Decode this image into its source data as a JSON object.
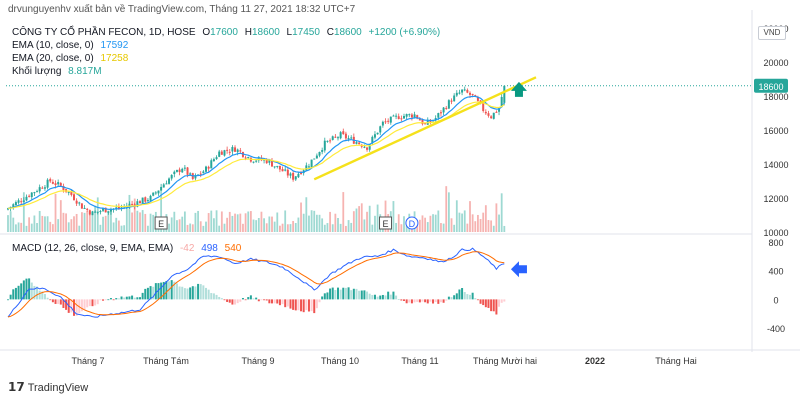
{
  "caption": "drvunguyenhv xuất bản về TradingView.com, Tháng 11 27, 2021 18:32 UTC+7",
  "main_legend": {
    "symbol_line": "CÔNG TY CỔ PHẦN FECON, 1D, HOSE",
    "o_label": "O",
    "o_value": "17600",
    "h_label": "H",
    "h_value": "18600",
    "l_label": "L",
    "l_value": "17450",
    "c_label": "C",
    "c_value": "18600",
    "change": "+1200 (+6.90%)",
    "ema10_label": "EMA (10, close, 0)",
    "ema10_value": "17592",
    "ema20_label": "EMA (20, close, 0)",
    "ema20_value": "17258",
    "volume_label": "Khối lượng",
    "volume_value": "8.817M"
  },
  "macd_legend": {
    "label": "MACD (12, 26, close, 9, EMA, EMA)",
    "hist_value": "-42",
    "macd_value": "498",
    "signal_value": "540"
  },
  "currency_badge": "VND",
  "branding": "TradingView",
  "colors": {
    "up": "#26a69a",
    "down": "#ef5350",
    "ema10": "#2196f3",
    "ema20": "#ffeb3b",
    "macd": "#2962ff",
    "signal": "#ff6d00",
    "trendline": "#f5e11b",
    "arrow_up": "#089981",
    "arrow_left": "#2962ff",
    "price_tag": "#26a69a"
  },
  "chart_data": [
    {
      "type": "candlestick",
      "title": "CÔNG TY CỔ PHẦN FECON, 1D, HOSE",
      "last_price": "18600",
      "y_ticks": [
        10000,
        12000,
        14000,
        16000,
        18000,
        20000,
        22000
      ],
      "y_tick_labels": [
        "10000",
        "12000",
        "14000",
        "16000",
        "18000",
        "20000",
        "22000"
      ],
      "ylim": [
        10000,
        22000
      ],
      "x_tick_labels": [
        "Tháng 7",
        "Tháng Tám",
        "Tháng 9",
        "Tháng 10",
        "Tháng 11",
        "Tháng Mười hai",
        "2022",
        "Tháng Hai"
      ],
      "grid": false,
      "events": [
        "E",
        "E",
        "D"
      ],
      "close_anchors": [
        [
          0,
          11400
        ],
        [
          6,
          12000
        ],
        [
          12,
          12600
        ],
        [
          16,
          13000
        ],
        [
          20,
          12700
        ],
        [
          24,
          12200
        ],
        [
          28,
          11500
        ],
        [
          32,
          11100
        ],
        [
          36,
          11300
        ],
        [
          42,
          11400
        ],
        [
          48,
          11700
        ],
        [
          54,
          12000
        ],
        [
          60,
          13000
        ],
        [
          66,
          13800
        ],
        [
          70,
          13100
        ],
        [
          75,
          13700
        ],
        [
          80,
          14700
        ],
        [
          86,
          14900
        ],
        [
          92,
          14300
        ],
        [
          98,
          14200
        ],
        [
          104,
          13600
        ],
        [
          108,
          13200
        ],
        [
          114,
          14000
        ],
        [
          120,
          15200
        ],
        [
          126,
          15700
        ],
        [
          132,
          15300
        ],
        [
          136,
          15000
        ],
        [
          142,
          16400
        ],
        [
          148,
          16800
        ],
        [
          154,
          16900
        ],
        [
          158,
          16300
        ],
        [
          162,
          16700
        ],
        [
          168,
          17800
        ],
        [
          172,
          18300
        ],
        [
          176,
          18000
        ],
        [
          180,
          17200
        ],
        [
          183,
          16800
        ],
        [
          186,
          17300
        ],
        [
          188,
          18600
        ]
      ],
      "trendline": [
        [
          116,
          13100
        ],
        [
          200,
          19100
        ]
      ]
    },
    {
      "type": "line",
      "title": "MACD (12, 26, close, 9, EMA, EMA)",
      "y_ticks": [
        -400,
        0,
        400,
        800
      ],
      "y_tick_labels": [
        "-400",
        "0",
        "400",
        "800"
      ],
      "ylim": [
        -650,
        800
      ],
      "macd_anchors": [
        [
          0,
          -250
        ],
        [
          8,
          150
        ],
        [
          14,
          150
        ],
        [
          20,
          30
        ],
        [
          26,
          -200
        ],
        [
          32,
          -250
        ],
        [
          38,
          -210
        ],
        [
          44,
          -180
        ],
        [
          50,
          -140
        ],
        [
          56,
          80
        ],
        [
          62,
          330
        ],
        [
          68,
          420
        ],
        [
          74,
          600
        ],
        [
          80,
          600
        ],
        [
          86,
          500
        ],
        [
          92,
          560
        ],
        [
          98,
          520
        ],
        [
          104,
          450
        ],
        [
          110,
          300
        ],
        [
          116,
          130
        ],
        [
          122,
          350
        ],
        [
          128,
          480
        ],
        [
          134,
          590
        ],
        [
          140,
          600
        ],
        [
          146,
          690
        ],
        [
          152,
          600
        ],
        [
          158,
          580
        ],
        [
          164,
          520
        ],
        [
          168,
          580
        ],
        [
          172,
          690
        ],
        [
          176,
          700
        ],
        [
          180,
          600
        ],
        [
          185,
          430
        ],
        [
          188,
          498
        ]
      ]
    }
  ]
}
